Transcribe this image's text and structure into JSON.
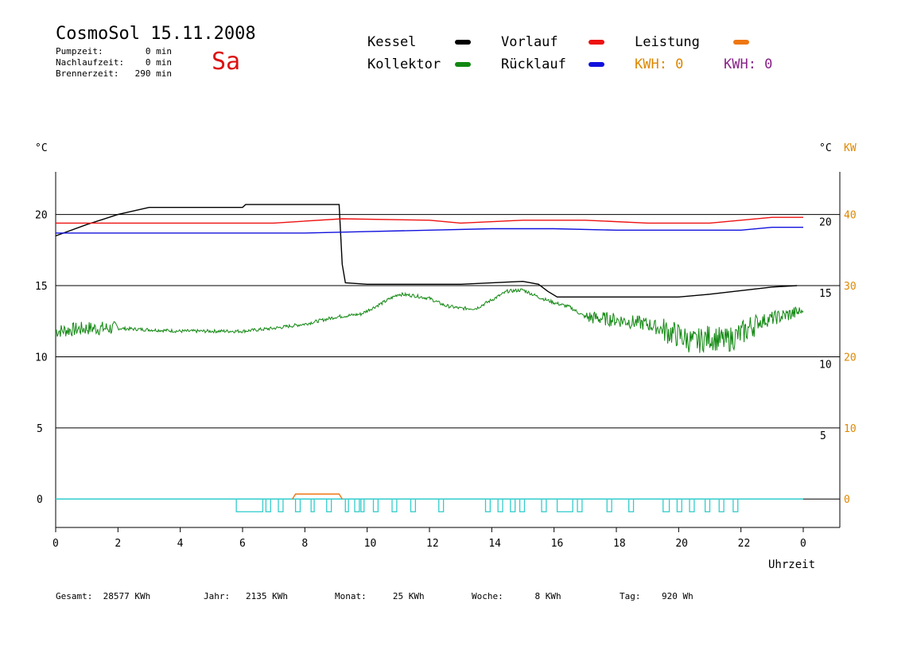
{
  "header": {
    "title": "CosmoSol 15.11.2008",
    "day": "Sa",
    "stats": [
      {
        "label": "Pumpzeit:",
        "value": "0 min"
      },
      {
        "label": "Nachlaufzeit:",
        "value": "0 min"
      },
      {
        "label": "Brennerzeit:",
        "value": "290 min"
      }
    ]
  },
  "legend": {
    "kessel": {
      "label": "Kessel",
      "color": "#000000"
    },
    "vorlauf": {
      "label": "Vorlauf",
      "color": "#ee1111"
    },
    "leistung": {
      "label": "Leistung",
      "color": "#ee7711"
    },
    "kollektor": {
      "label": "Kollektor",
      "color": "#118811"
    },
    "ruecklauf": {
      "label": "Rücklauf",
      "color": "#1111dd"
    },
    "kwh1": {
      "label": "KWH: 0",
      "color": "#dd8800"
    },
    "kwh2": {
      "label": "KWH: 0",
      "color": "#882288"
    }
  },
  "footer": [
    {
      "label": "Gesamt:",
      "value": "28577 KWh"
    },
    {
      "label": "Jahr:",
      "value": "2135 KWh"
    },
    {
      "label": "Monat:",
      "value": "25 KWh"
    },
    {
      "label": "Woche:",
      "value": "8 KWh"
    },
    {
      "label": "Tag:",
      "value": "920 Wh"
    }
  ],
  "chart_data": {
    "type": "line",
    "xlabel": "Uhrzeit",
    "x_ticks": [
      "0",
      "2",
      "4",
      "6",
      "8",
      "10",
      "12",
      "14",
      "16",
      "18",
      "20",
      "22",
      "0"
    ],
    "xlim": [
      0,
      24
    ],
    "y_left": {
      "label": "°C",
      "ticks": [
        "0",
        "5",
        "10",
        "15",
        "20"
      ],
      "ylim": [
        -2,
        23
      ]
    },
    "y_right_temp": {
      "label": "°C",
      "ticks": [
        "5",
        "10",
        "15",
        "20"
      ]
    },
    "y_right_power": {
      "label": "KW",
      "ticks": [
        "0",
        "10",
        "20",
        "30",
        "40"
      ],
      "color": "#dd8800"
    },
    "grid_lines_y": [
      0,
      5,
      10,
      15,
      20
    ],
    "series": [
      {
        "name": "Kessel",
        "color": "#000000",
        "points": [
          [
            0,
            18.5
          ],
          [
            1,
            19.3
          ],
          [
            2,
            20.0
          ],
          [
            3,
            20.5
          ],
          [
            6,
            20.5
          ],
          [
            6.1,
            20.7
          ],
          [
            9.1,
            20.7
          ],
          [
            9.2,
            16.5
          ],
          [
            9.3,
            15.2
          ],
          [
            10,
            15.1
          ],
          [
            13,
            15.1
          ],
          [
            15,
            15.3
          ],
          [
            15.5,
            15.1
          ],
          [
            15.8,
            14.6
          ],
          [
            16.1,
            14.2
          ],
          [
            18,
            14.2
          ],
          [
            20,
            14.2
          ],
          [
            21,
            14.4
          ],
          [
            23,
            14.9
          ],
          [
            23.8,
            15.0
          ]
        ]
      },
      {
        "name": "Vorlauf",
        "color": "#ee1111",
        "points": [
          [
            0,
            19.4
          ],
          [
            7,
            19.4
          ],
          [
            9.2,
            19.7
          ],
          [
            12,
            19.6
          ],
          [
            13,
            19.4
          ],
          [
            15,
            19.6
          ],
          [
            17,
            19.6
          ],
          [
            19,
            19.4
          ],
          [
            21,
            19.4
          ],
          [
            22,
            19.6
          ],
          [
            23,
            19.8
          ],
          [
            24,
            19.8
          ]
        ]
      },
      {
        "name": "Rücklauf",
        "color": "#1111dd",
        "points": [
          [
            0,
            18.7
          ],
          [
            4,
            18.7
          ],
          [
            8,
            18.7
          ],
          [
            10,
            18.8
          ],
          [
            12,
            18.9
          ],
          [
            14,
            19.0
          ],
          [
            16,
            19.0
          ],
          [
            18,
            18.9
          ],
          [
            20,
            18.9
          ],
          [
            22,
            18.9
          ],
          [
            23,
            19.1
          ],
          [
            24,
            19.1
          ]
        ]
      },
      {
        "name": "Kollektor",
        "color": "#118811",
        "points": [
          [
            0,
            11.8
          ],
          [
            1,
            12.0
          ],
          [
            2,
            12.0
          ],
          [
            3,
            11.9
          ],
          [
            4,
            11.8
          ],
          [
            5,
            11.8
          ],
          [
            6,
            11.8
          ],
          [
            7,
            12.0
          ],
          [
            8,
            12.3
          ],
          [
            9,
            12.8
          ],
          [
            9.8,
            13.0
          ],
          [
            10.5,
            13.8
          ],
          [
            11,
            14.4
          ],
          [
            11.5,
            14.3
          ],
          [
            12,
            14.1
          ],
          [
            12.5,
            13.6
          ],
          [
            13,
            13.4
          ],
          [
            13.5,
            13.4
          ],
          [
            14,
            14.0
          ],
          [
            14.5,
            14.6
          ],
          [
            15,
            14.7
          ],
          [
            15.5,
            14.2
          ],
          [
            16,
            13.8
          ],
          [
            16.5,
            13.5
          ],
          [
            17,
            12.8
          ],
          [
            18,
            12.6
          ],
          [
            19,
            12.3
          ],
          [
            20,
            11.5
          ],
          [
            20.5,
            11.0
          ],
          [
            21,
            11.4
          ],
          [
            21.5,
            11.1
          ],
          [
            22,
            11.6
          ],
          [
            22.5,
            12.4
          ],
          [
            23,
            12.7
          ],
          [
            23.6,
            13.0
          ],
          [
            24,
            13.2
          ]
        ]
      },
      {
        "name": "Leistung",
        "color": "#ee7711",
        "points": [
          [
            7.6,
            0.0
          ],
          [
            7.7,
            0.35
          ],
          [
            9.1,
            0.35
          ],
          [
            9.2,
            0.0
          ]
        ]
      }
    ],
    "pump_signal": {
      "color": "#33cccc",
      "on_intervals": [
        [
          5.8,
          6.65
        ],
        [
          6.75,
          6.9
        ],
        [
          7.15,
          7.3
        ],
        [
          7.7,
          7.85
        ],
        [
          8.2,
          8.3
        ],
        [
          8.7,
          8.85
        ],
        [
          9.3,
          9.4
        ],
        [
          9.6,
          9.75
        ],
        [
          9.8,
          9.9
        ],
        [
          10.2,
          10.35
        ],
        [
          10.8,
          10.95
        ],
        [
          11.4,
          11.55
        ],
        [
          12.3,
          12.45
        ],
        [
          13.8,
          13.95
        ],
        [
          14.2,
          14.35
        ],
        [
          14.6,
          14.75
        ],
        [
          14.9,
          15.05
        ],
        [
          15.6,
          15.75
        ],
        [
          16.1,
          16.6
        ],
        [
          16.75,
          16.9
        ],
        [
          17.7,
          17.85
        ],
        [
          18.4,
          18.55
        ],
        [
          19.5,
          19.7
        ],
        [
          19.95,
          20.1
        ],
        [
          20.35,
          20.5
        ],
        [
          20.85,
          21.0
        ],
        [
          21.3,
          21.45
        ],
        [
          21.75,
          21.9
        ]
      ]
    }
  }
}
